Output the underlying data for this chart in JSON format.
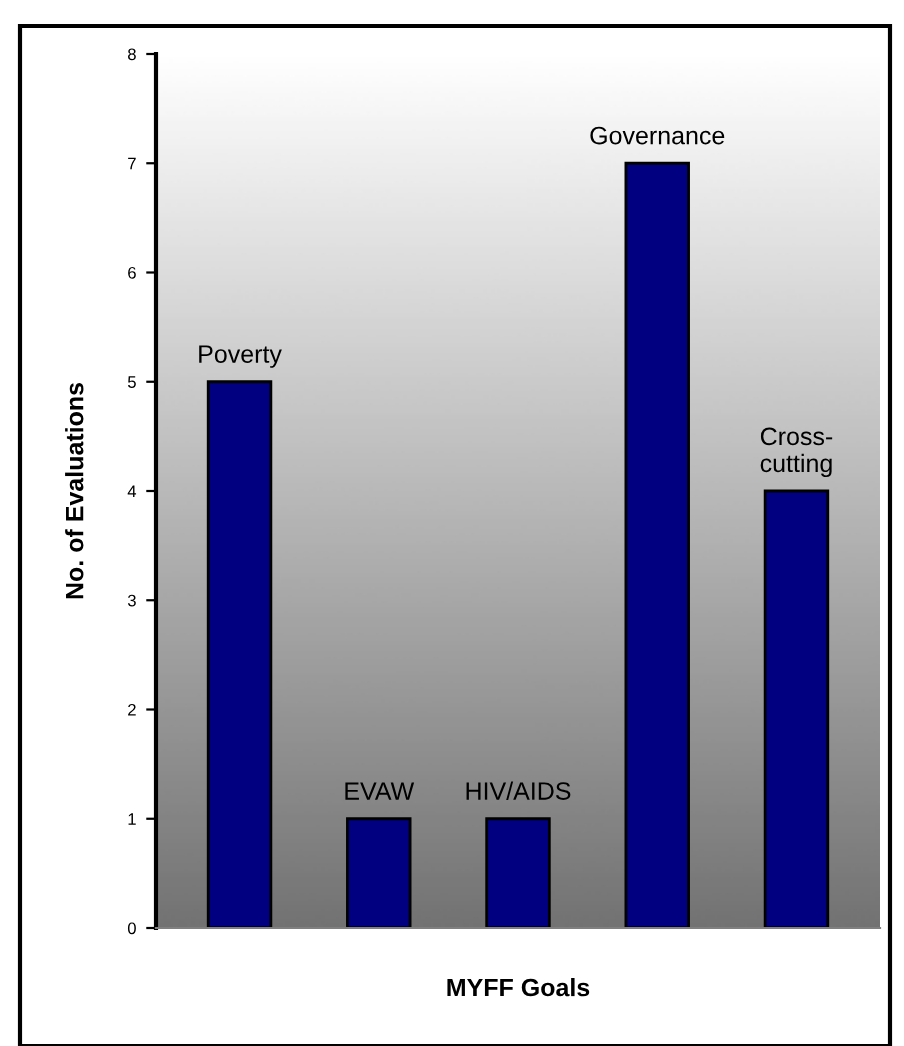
{
  "chart_data": {
    "type": "bar",
    "xlabel": "MYFF Goals",
    "ylabel": "No. of Evaluations",
    "categories": [
      "Poverty",
      "EVAW",
      "HIV/AIDS",
      "Governance",
      "Cross-\ncutting"
    ],
    "values": [
      5,
      1,
      1,
      7,
      4
    ],
    "color": "#000080",
    "ylim": [
      0,
      8
    ],
    "yticks": [
      0,
      1,
      2,
      3,
      4,
      5,
      6,
      7,
      8
    ],
    "grid": false,
    "legend": false
  }
}
